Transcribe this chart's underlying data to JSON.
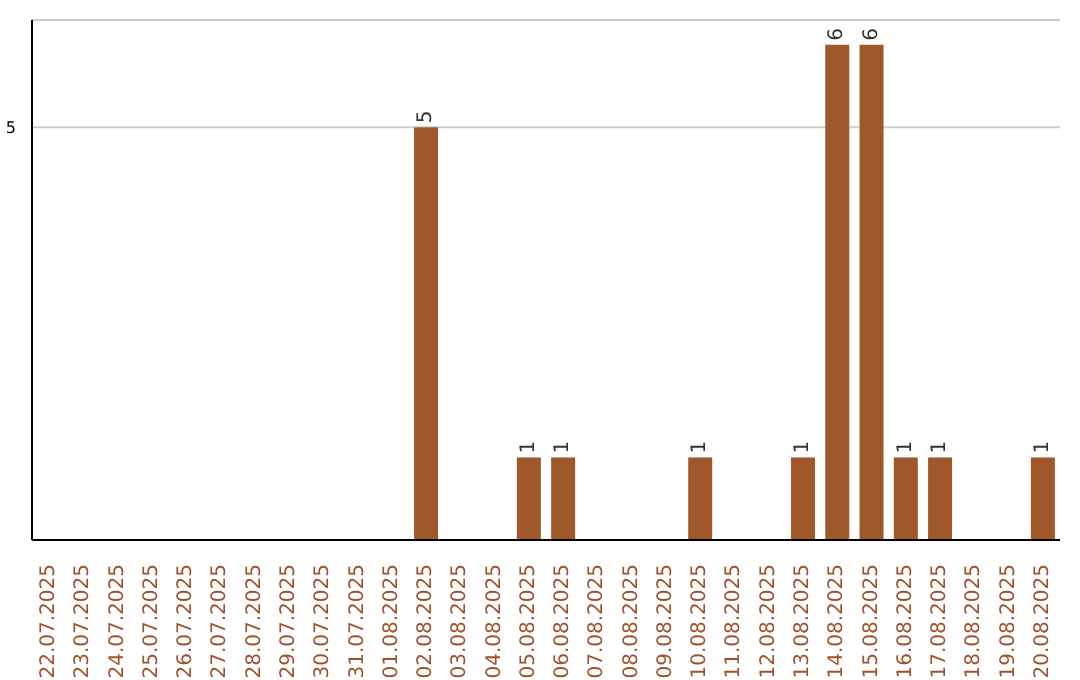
{
  "chart_data": {
    "type": "bar",
    "categories": [
      "22.07.2025",
      "23.07.2025",
      "24.07.2025",
      "25.07.2025",
      "26.07.2025",
      "27.07.2025",
      "28.07.2025",
      "29.07.2025",
      "30.07.2025",
      "31.07.2025",
      "01.08.2025",
      "02.08.2025",
      "03.08.2025",
      "04.08.2025",
      "05.08.2025",
      "06.08.2025",
      "07.08.2025",
      "08.08.2025",
      "09.08.2025",
      "10.08.2025",
      "11.08.2025",
      "12.08.2025",
      "13.08.2025",
      "14.08.2025",
      "15.08.2025",
      "16.08.2025",
      "17.08.2025",
      "18.08.2025",
      "19.08.2025",
      "20.08.2025"
    ],
    "values": [
      0,
      0,
      0,
      0,
      0,
      0,
      0,
      0,
      0,
      0,
      0,
      5,
      0,
      0,
      1,
      1,
      0,
      0,
      0,
      1,
      0,
      0,
      1,
      6,
      6,
      1,
      1,
      0,
      0,
      1
    ],
    "value_labels": [
      null,
      null,
      null,
      null,
      null,
      null,
      null,
      null,
      null,
      null,
      null,
      "5",
      null,
      null,
      "1",
      "1",
      null,
      null,
      null,
      "1",
      null,
      null,
      "1",
      "6",
      "6",
      "1",
      "1",
      null,
      null,
      "1"
    ],
    "color": "#a0582a",
    "ylim": [
      0,
      6.3
    ],
    "yticks": [
      5
    ],
    "grid": "y"
  }
}
